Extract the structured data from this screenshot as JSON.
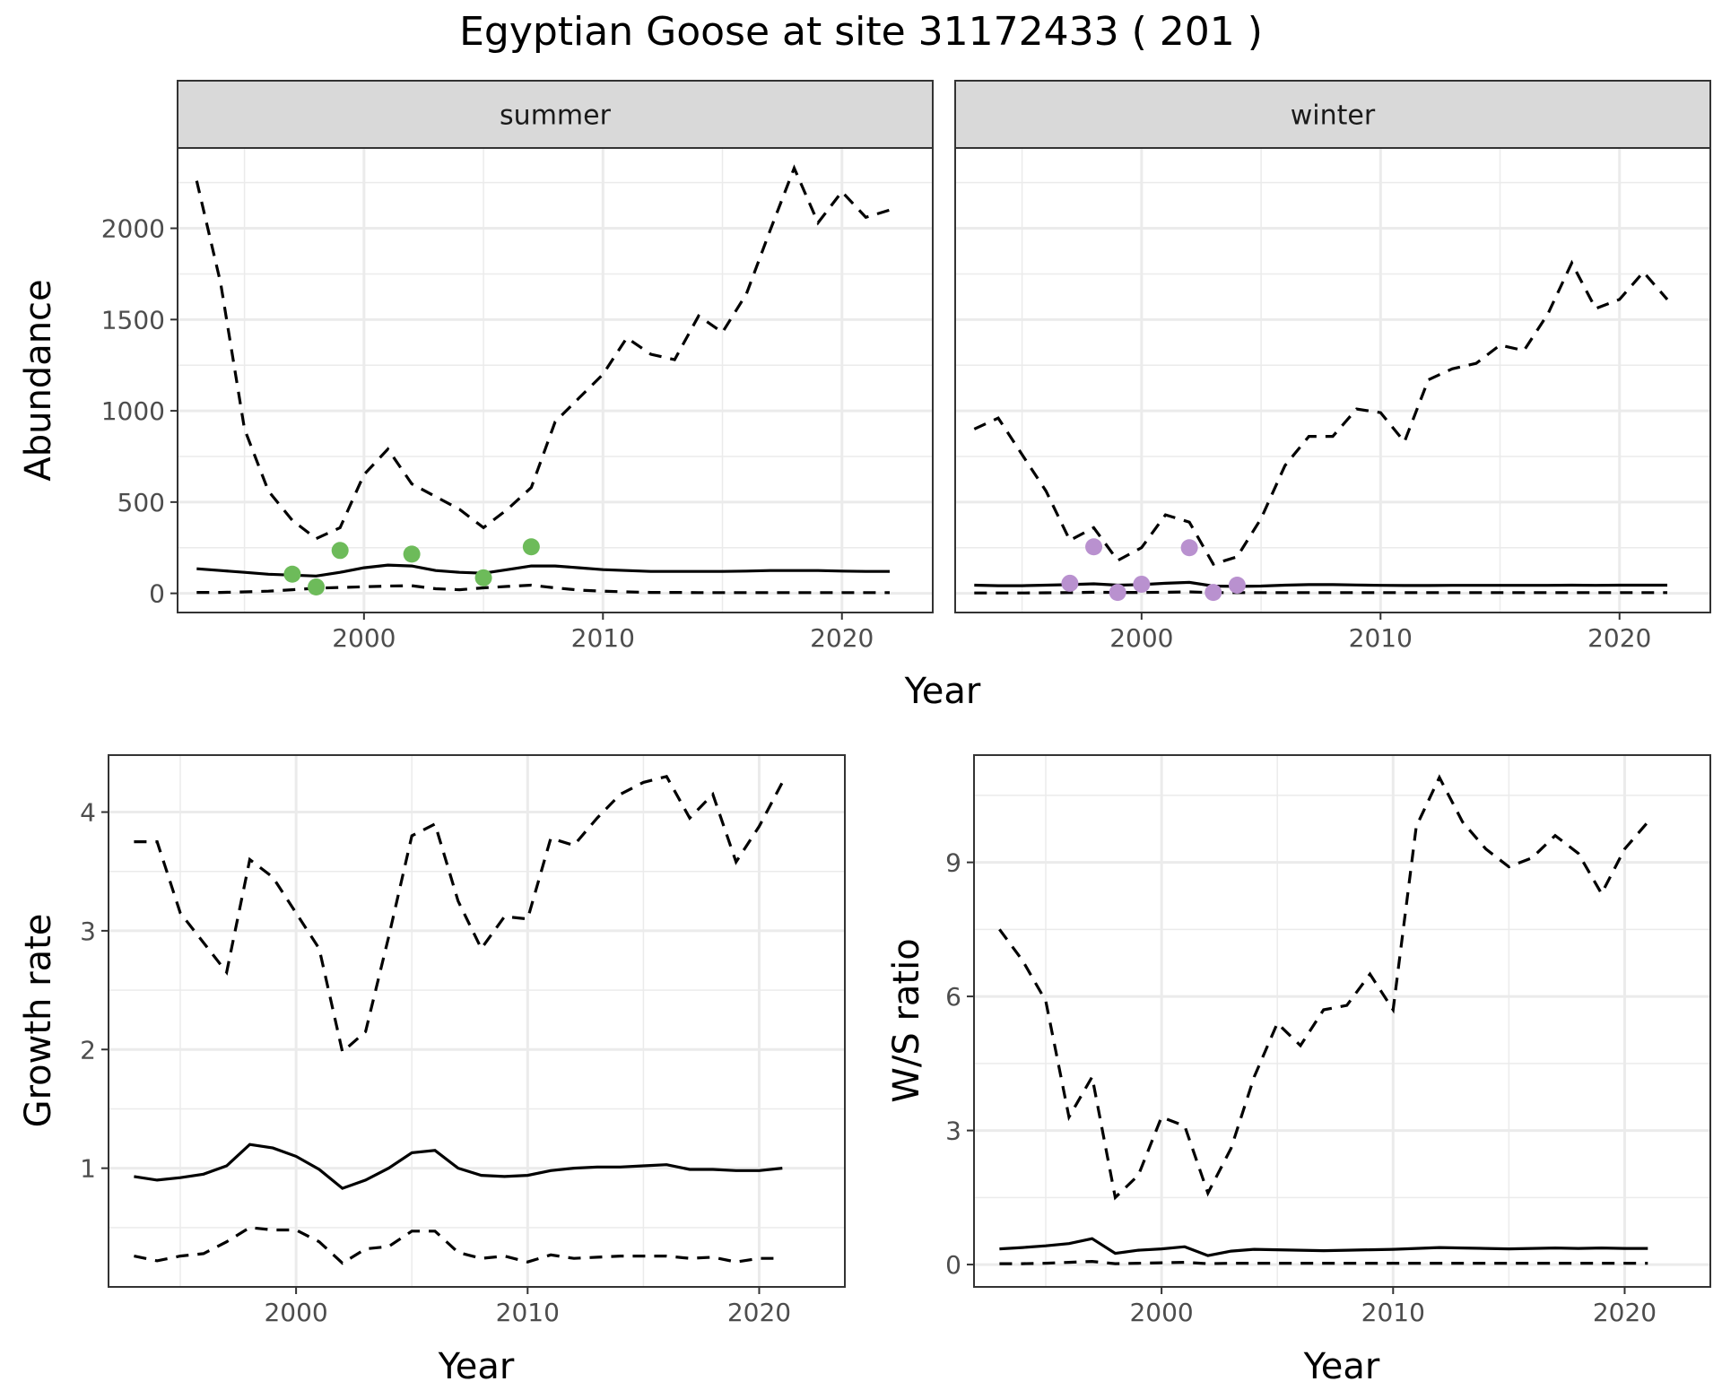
{
  "title": "Egyptian Goose at site 31172433 ( 201 )",
  "colors": {
    "summer_points": "#6dbb5a",
    "winter_points": "#b991cf",
    "lines": "#000000",
    "strip": "#d9d9d9"
  },
  "chart_data": [
    {
      "type": "line",
      "panel": "summer",
      "strip_label": "summer",
      "xlabel": "",
      "ylabel": "Abundance",
      "xlim": [
        1992.2,
        2023.8
      ],
      "ylim": [
        -105,
        2440
      ],
      "x_ticks": [
        2000,
        2010,
        2020
      ],
      "y_ticks": [
        0,
        500,
        1000,
        1500,
        2000
      ],
      "grid": true,
      "series": [
        {
          "style": "dashed",
          "x": [
            1993,
            1994,
            1995,
            1996,
            1997,
            1998,
            1999,
            2000,
            2001,
            2002,
            2003,
            2004,
            2005,
            2006,
            2007,
            2008,
            2009,
            2010,
            2011,
            2012,
            2013,
            2014,
            2015,
            2016,
            2017,
            2018,
            2019,
            2020,
            2021,
            2022
          ],
          "y": [
            2260,
            1700,
            900,
            560,
            400,
            300,
            360,
            650,
            790,
            600,
            530,
            460,
            360,
            460,
            580,
            940,
            1070,
            1200,
            1400,
            1310,
            1280,
            1520,
            1430,
            1640,
            1990,
            2330,
            2030,
            2200,
            2060,
            2100
          ]
        },
        {
          "style": "solid",
          "x": [
            1993,
            1994,
            1995,
            1996,
            1997,
            1998,
            1999,
            2000,
            2001,
            2002,
            2003,
            2004,
            2005,
            2006,
            2007,
            2008,
            2009,
            2010,
            2011,
            2012,
            2013,
            2014,
            2015,
            2016,
            2017,
            2018,
            2019,
            2020,
            2021,
            2022
          ],
          "y": [
            135,
            125,
            115,
            105,
            100,
            95,
            115,
            140,
            155,
            150,
            125,
            115,
            110,
            130,
            150,
            150,
            140,
            130,
            125,
            120,
            120,
            120,
            120,
            122,
            125,
            125,
            125,
            122,
            120,
            120
          ]
        },
        {
          "style": "dashed",
          "x": [
            1993,
            1994,
            1995,
            1996,
            1997,
            1998,
            1999,
            2000,
            2001,
            2002,
            2003,
            2004,
            2005,
            2006,
            2007,
            2008,
            2009,
            2010,
            2011,
            2012,
            2013,
            2014,
            2015,
            2016,
            2017,
            2018,
            2019,
            2020,
            2021,
            2022
          ],
          "y": [
            5,
            5,
            8,
            12,
            20,
            28,
            32,
            36,
            40,
            42,
            25,
            20,
            30,
            38,
            45,
            30,
            18,
            12,
            8,
            5,
            5,
            4,
            4,
            4,
            4,
            4,
            4,
            4,
            4,
            4
          ]
        }
      ],
      "points": {
        "x": [
          1997,
          1998,
          1999,
          2002,
          2005,
          2007
        ],
        "y": [
          105,
          35,
          235,
          215,
          85,
          255
        ]
      }
    },
    {
      "type": "line",
      "panel": "winter",
      "strip_label": "winter",
      "xlabel": "",
      "ylabel": "",
      "xlim": [
        1992.2,
        2023.8
      ],
      "ylim": [
        -105,
        2440
      ],
      "x_ticks": [
        2000,
        2010,
        2020
      ],
      "y_ticks": [
        0,
        500,
        1000,
        1500,
        2000
      ],
      "grid": true,
      "series": [
        {
          "style": "dashed",
          "x": [
            1993,
            1994,
            1995,
            1996,
            1997,
            1998,
            1999,
            2000,
            2001,
            2002,
            2003,
            2004,
            2005,
            2006,
            2007,
            2008,
            2009,
            2010,
            2011,
            2012,
            2013,
            2014,
            2015,
            2016,
            2017,
            2018,
            2019,
            2020,
            2021,
            2022
          ],
          "y": [
            900,
            960,
            760,
            560,
            290,
            360,
            180,
            250,
            430,
            390,
            160,
            200,
            410,
            700,
            860,
            860,
            1010,
            990,
            830,
            1170,
            1230,
            1260,
            1360,
            1330,
            1530,
            1810,
            1560,
            1610,
            1760,
            1610
          ]
        },
        {
          "style": "solid",
          "x": [
            1993,
            1994,
            1995,
            1996,
            1997,
            1998,
            1999,
            2000,
            2001,
            2002,
            2003,
            2004,
            2005,
            2006,
            2007,
            2008,
            2009,
            2010,
            2011,
            2012,
            2013,
            2014,
            2015,
            2016,
            2017,
            2018,
            2019,
            2020,
            2021,
            2022
          ],
          "y": [
            45,
            42,
            42,
            45,
            48,
            52,
            45,
            48,
            55,
            60,
            40,
            38,
            40,
            45,
            48,
            48,
            46,
            44,
            43,
            43,
            44,
            44,
            44,
            44,
            44,
            45,
            44,
            45,
            45,
            45
          ]
        },
        {
          "style": "dashed",
          "x": [
            1993,
            1994,
            1995,
            1996,
            1997,
            1998,
            1999,
            2000,
            2001,
            2002,
            2003,
            2004,
            2005,
            2006,
            2007,
            2008,
            2009,
            2010,
            2011,
            2012,
            2013,
            2014,
            2015,
            2016,
            2017,
            2018,
            2019,
            2020,
            2021,
            2022
          ],
          "y": [
            2,
            2,
            2,
            3,
            4,
            6,
            5,
            5,
            6,
            8,
            4,
            4,
            4,
            4,
            4,
            4,
            4,
            4,
            4,
            4,
            4,
            4,
            4,
            4,
            4,
            4,
            4,
            4,
            4,
            4
          ]
        }
      ],
      "points": {
        "x": [
          1997,
          1998,
          1999,
          2000,
          2002,
          2003,
          2004
        ],
        "y": [
          55,
          255,
          5,
          50,
          250,
          5,
          45
        ]
      }
    },
    {
      "type": "line",
      "panel": "growth",
      "xlabel": "Year",
      "ylabel": "Growth rate",
      "xlim": [
        1991.9,
        2023.7
      ],
      "ylim": [
        0,
        4.48
      ],
      "x_ticks": [
        2000,
        2010,
        2020
      ],
      "y_ticks": [
        1,
        2,
        3,
        4
      ],
      "grid": true,
      "series": [
        {
          "style": "dashed",
          "x": [
            1993,
            1994,
            1995,
            1996,
            1997,
            1998,
            1999,
            2000,
            2001,
            2002,
            2003,
            2004,
            2005,
            2006,
            2007,
            2008,
            2009,
            2010,
            2011,
            2012,
            2013,
            2014,
            2015,
            2016,
            2017,
            2018,
            2019,
            2020,
            2021
          ],
          "y": [
            3.75,
            3.75,
            3.15,
            2.9,
            2.65,
            3.6,
            3.45,
            3.15,
            2.85,
            1.98,
            2.15,
            2.95,
            3.8,
            3.9,
            3.25,
            2.85,
            3.12,
            3.1,
            3.78,
            3.72,
            3.95,
            4.15,
            4.25,
            4.3,
            3.95,
            4.15,
            3.58,
            3.88,
            4.25
          ]
        },
        {
          "style": "solid",
          "x": [
            1993,
            1994,
            1995,
            1996,
            1997,
            1998,
            1999,
            2000,
            2001,
            2002,
            2003,
            2004,
            2005,
            2006,
            2007,
            2008,
            2009,
            2010,
            2011,
            2012,
            2013,
            2014,
            2015,
            2016,
            2017,
            2018,
            2019,
            2020,
            2021
          ],
          "y": [
            0.93,
            0.9,
            0.92,
            0.95,
            1.02,
            1.2,
            1.17,
            1.1,
            0.99,
            0.83,
            0.9,
            1.0,
            1.13,
            1.15,
            1.0,
            0.94,
            0.93,
            0.94,
            0.98,
            1.0,
            1.01,
            1.01,
            1.02,
            1.03,
            0.99,
            0.99,
            0.98,
            0.98,
            1.0
          ]
        },
        {
          "style": "dashed",
          "x": [
            1993,
            1994,
            1995,
            1996,
            1997,
            1998,
            1999,
            2000,
            2001,
            2002,
            2003,
            2004,
            2005,
            2006,
            2007,
            2008,
            2009,
            2010,
            2011,
            2012,
            2013,
            2014,
            2015,
            2016,
            2017,
            2018,
            2019,
            2020,
            2021
          ],
          "y": [
            0.26,
            0.22,
            0.26,
            0.28,
            0.38,
            0.5,
            0.48,
            0.48,
            0.38,
            0.2,
            0.32,
            0.34,
            0.47,
            0.47,
            0.29,
            0.24,
            0.26,
            0.21,
            0.27,
            0.24,
            0.25,
            0.26,
            0.26,
            0.26,
            0.24,
            0.25,
            0.21,
            0.24,
            0.24
          ]
        }
      ]
    },
    {
      "type": "line",
      "panel": "ratio",
      "xlabel": "Year",
      "ylabel": "W/S ratio",
      "xlim": [
        1991.9,
        2023.7
      ],
      "ylim": [
        -0.5,
        11.4
      ],
      "x_ticks": [
        2000,
        2010,
        2020
      ],
      "y_ticks": [
        0,
        3,
        6,
        9
      ],
      "grid": true,
      "series": [
        {
          "style": "dashed",
          "x": [
            1993,
            1994,
            1995,
            1996,
            1997,
            1998,
            1999,
            2000,
            2001,
            2002,
            2003,
            2004,
            2005,
            2006,
            2007,
            2008,
            2009,
            2010,
            2011,
            2012,
            2013,
            2014,
            2015,
            2016,
            2017,
            2018,
            2019,
            2020,
            2021
          ],
          "y": [
            7.5,
            6.8,
            5.9,
            3.3,
            4.2,
            1.5,
            2.0,
            3.3,
            3.1,
            1.6,
            2.6,
            4.2,
            5.4,
            4.9,
            5.7,
            5.8,
            6.5,
            5.7,
            9.8,
            10.9,
            9.9,
            9.3,
            8.9,
            9.1,
            9.6,
            9.2,
            8.3,
            9.3,
            9.9
          ]
        },
        {
          "style": "solid",
          "x": [
            1993,
            1994,
            1995,
            1996,
            1997,
            1998,
            1999,
            2000,
            2001,
            2002,
            2003,
            2004,
            2005,
            2006,
            2007,
            2008,
            2009,
            2010,
            2011,
            2012,
            2013,
            2014,
            2015,
            2016,
            2017,
            2018,
            2019,
            2020,
            2021
          ],
          "y": [
            0.35,
            0.38,
            0.42,
            0.47,
            0.58,
            0.25,
            0.32,
            0.35,
            0.4,
            0.2,
            0.3,
            0.34,
            0.33,
            0.32,
            0.31,
            0.32,
            0.33,
            0.34,
            0.36,
            0.38,
            0.37,
            0.36,
            0.35,
            0.36,
            0.37,
            0.36,
            0.37,
            0.36,
            0.36
          ]
        },
        {
          "style": "dashed",
          "x": [
            1993,
            1994,
            1995,
            1996,
            1997,
            1998,
            1999,
            2000,
            2001,
            2002,
            2003,
            2004,
            2005,
            2006,
            2007,
            2008,
            2009,
            2010,
            2011,
            2012,
            2013,
            2014,
            2015,
            2016,
            2017,
            2018,
            2019,
            2020,
            2021
          ],
          "y": [
            0.02,
            0.02,
            0.03,
            0.05,
            0.07,
            0.02,
            0.03,
            0.04,
            0.05,
            0.02,
            0.03,
            0.03,
            0.03,
            0.03,
            0.03,
            0.03,
            0.03,
            0.03,
            0.03,
            0.03,
            0.03,
            0.03,
            0.03,
            0.03,
            0.03,
            0.03,
            0.03,
            0.03,
            0.03
          ]
        }
      ]
    }
  ],
  "labels": {
    "year_top": "Year",
    "year_bottom_left": "Year",
    "year_bottom_right": "Year"
  }
}
